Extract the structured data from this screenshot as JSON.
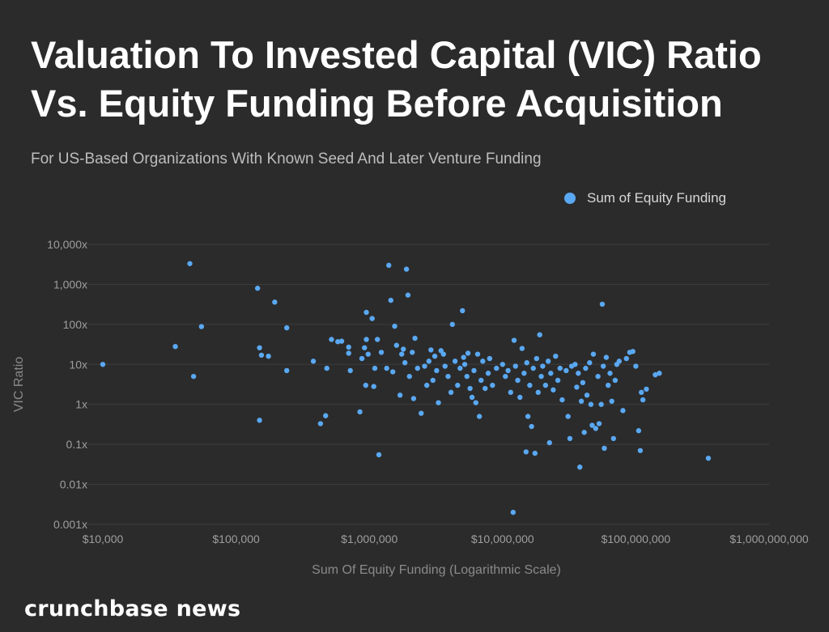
{
  "title": "Valuation To Invested Capital (VIC) Ratio Vs. Equity Funding Before Acquisition",
  "subtitle": "For US-Based Organizations With Known Seed And Later Venture Funding",
  "brand": "crunchbase news",
  "chart_data": {
    "type": "scatter",
    "xscale": "log",
    "yscale": "log",
    "xlabel": "Sum Of Equity Funding (Logarithmic Scale)",
    "ylabel": "VIC Ratio",
    "xlim": [
      10000,
      1000000000
    ],
    "ylim": [
      0.001,
      10000
    ],
    "x_ticks": [
      {
        "value": 10000,
        "label": "$10,000"
      },
      {
        "value": 100000,
        "label": "$100,000"
      },
      {
        "value": 1000000,
        "label": "$1,000,000"
      },
      {
        "value": 10000000,
        "label": "$10,000,000"
      },
      {
        "value": 100000000,
        "label": "$100,000,000"
      },
      {
        "value": 1000000000,
        "label": "$1,000,000,000"
      }
    ],
    "y_ticks": [
      {
        "value": 0.001,
        "label": "0.001x"
      },
      {
        "value": 0.01,
        "label": "0.01x"
      },
      {
        "value": 0.1,
        "label": "0.1x"
      },
      {
        "value": 1,
        "label": "1x"
      },
      {
        "value": 10,
        "label": "10x"
      },
      {
        "value": 100,
        "label": "100x"
      },
      {
        "value": 1000,
        "label": "1,000x"
      },
      {
        "value": 10000,
        "label": "10,000x"
      }
    ],
    "grid": {
      "horizontal": true,
      "vertical": false
    },
    "legend_position": "top-right",
    "colors": {
      "point": "#5aa8f2",
      "background": "#2b2b2b",
      "grid": "#3d3d3d",
      "tick_text": "#9e9e9e",
      "axis_label": "#8a8a8a"
    },
    "series": [
      {
        "name": "Sum of Equity Funding",
        "points": [
          [
            10000,
            10
          ],
          [
            35000,
            28
          ],
          [
            45000,
            3300
          ],
          [
            48000,
            5
          ],
          [
            55000,
            88
          ],
          [
            145000,
            800
          ],
          [
            150000,
            26
          ],
          [
            150000,
            0.4
          ],
          [
            155000,
            17
          ],
          [
            175000,
            16
          ],
          [
            195000,
            360
          ],
          [
            240000,
            7
          ],
          [
            240000,
            82
          ],
          [
            380000,
            12
          ],
          [
            430000,
            0.33
          ],
          [
            470000,
            0.52
          ],
          [
            480000,
            8
          ],
          [
            520000,
            42
          ],
          [
            580000,
            37
          ],
          [
            620000,
            38
          ],
          [
            700000,
            27
          ],
          [
            700000,
            19
          ],
          [
            720000,
            7
          ],
          [
            850000,
            0.65
          ],
          [
            880000,
            14
          ],
          [
            920000,
            26
          ],
          [
            940000,
            3
          ],
          [
            950000,
            200
          ],
          [
            950000,
            42
          ],
          [
            980000,
            18
          ],
          [
            1050000,
            140
          ],
          [
            1080000,
            2.8
          ],
          [
            1100000,
            8
          ],
          [
            1150000,
            42
          ],
          [
            1180000,
            0.055
          ],
          [
            1230000,
            20
          ],
          [
            1350000,
            8
          ],
          [
            1400000,
            3000
          ],
          [
            1450000,
            400
          ],
          [
            1500000,
            6.5
          ],
          [
            1550000,
            90
          ],
          [
            1600000,
            30
          ],
          [
            1700000,
            1.7
          ],
          [
            1750000,
            18
          ],
          [
            1800000,
            24
          ],
          [
            1850000,
            11
          ],
          [
            1900000,
            2400
          ],
          [
            1950000,
            540
          ],
          [
            2000000,
            5
          ],
          [
            2100000,
            20
          ],
          [
            2150000,
            1.4
          ],
          [
            2200000,
            45
          ],
          [
            2300000,
            8
          ],
          [
            2450000,
            0.6
          ],
          [
            2600000,
            9
          ],
          [
            2700000,
            3
          ],
          [
            2800000,
            12
          ],
          [
            2900000,
            23
          ],
          [
            3000000,
            4
          ],
          [
            3100000,
            16
          ],
          [
            3200000,
            7
          ],
          [
            3300000,
            1.1
          ],
          [
            3450000,
            22
          ],
          [
            3600000,
            18
          ],
          [
            3700000,
            9
          ],
          [
            3900000,
            5
          ],
          [
            4100000,
            2
          ],
          [
            4200000,
            100
          ],
          [
            4400000,
            12
          ],
          [
            4600000,
            3
          ],
          [
            4800000,
            8
          ],
          [
            5000000,
            220
          ],
          [
            5100000,
            15
          ],
          [
            5200000,
            10
          ],
          [
            5400000,
            5
          ],
          [
            5500000,
            19
          ],
          [
            5700000,
            2.5
          ],
          [
            5900000,
            1.5
          ],
          [
            6100000,
            7
          ],
          [
            6300000,
            1.1
          ],
          [
            6500000,
            18
          ],
          [
            6700000,
            0.5
          ],
          [
            6900000,
            4
          ],
          [
            7100000,
            12
          ],
          [
            7400000,
            2.5
          ],
          [
            7800000,
            6
          ],
          [
            8000000,
            14
          ],
          [
            8400000,
            3
          ],
          [
            9000000,
            8
          ],
          [
            10000000,
            10
          ],
          [
            10500000,
            5
          ],
          [
            11000000,
            7
          ],
          [
            11500000,
            2
          ],
          [
            12000000,
            0.002
          ],
          [
            12200000,
            40
          ],
          [
            12500000,
            9
          ],
          [
            13000000,
            4
          ],
          [
            13500000,
            1.5
          ],
          [
            14000000,
            25
          ],
          [
            14500000,
            6
          ],
          [
            15000000,
            0.065
          ],
          [
            15200000,
            11
          ],
          [
            15500000,
            0.5
          ],
          [
            16000000,
            3
          ],
          [
            16500000,
            0.28
          ],
          [
            17000000,
            8
          ],
          [
            17500000,
            0.06
          ],
          [
            18000000,
            14
          ],
          [
            18500000,
            2
          ],
          [
            19000000,
            55
          ],
          [
            19500000,
            5
          ],
          [
            20000000,
            9
          ],
          [
            21000000,
            3
          ],
          [
            22000000,
            12
          ],
          [
            22500000,
            0.11
          ],
          [
            23000000,
            6
          ],
          [
            24000000,
            2.3
          ],
          [
            25000000,
            16
          ],
          [
            26000000,
            4
          ],
          [
            27000000,
            8
          ],
          [
            28000000,
            1.3
          ],
          [
            30000000,
            7
          ],
          [
            31000000,
            0.5
          ],
          [
            32000000,
            0.14
          ],
          [
            33000000,
            9
          ],
          [
            35000000,
            10
          ],
          [
            36000000,
            2.7
          ],
          [
            37000000,
            6
          ],
          [
            38000000,
            0.027
          ],
          [
            39000000,
            1.2
          ],
          [
            40000000,
            3.5
          ],
          [
            41000000,
            0.2
          ],
          [
            42000000,
            8
          ],
          [
            43000000,
            1.7
          ],
          [
            45000000,
            11
          ],
          [
            46000000,
            1
          ],
          [
            47000000,
            0.3
          ],
          [
            48000000,
            18
          ],
          [
            50000000,
            0.25
          ],
          [
            52000000,
            5
          ],
          [
            53000000,
            0.33
          ],
          [
            55000000,
            1
          ],
          [
            56000000,
            320
          ],
          [
            57000000,
            9
          ],
          [
            58000000,
            0.08
          ],
          [
            60000000,
            15
          ],
          [
            62000000,
            3
          ],
          [
            64000000,
            6
          ],
          [
            66000000,
            1.2
          ],
          [
            68000000,
            0.14
          ],
          [
            70000000,
            4
          ],
          [
            72000000,
            10
          ],
          [
            75000000,
            12
          ],
          [
            80000000,
            0.7
          ],
          [
            85000000,
            14
          ],
          [
            90000000,
            20
          ],
          [
            95000000,
            21
          ],
          [
            100000000,
            9
          ],
          [
            105000000,
            0.22
          ],
          [
            108000000,
            0.07
          ],
          [
            110000000,
            2
          ],
          [
            113000000,
            1.3
          ],
          [
            120000000,
            2.4
          ],
          [
            140000000,
            5.5
          ],
          [
            150000000,
            6
          ],
          [
            350000000,
            0.045
          ]
        ]
      }
    ]
  }
}
